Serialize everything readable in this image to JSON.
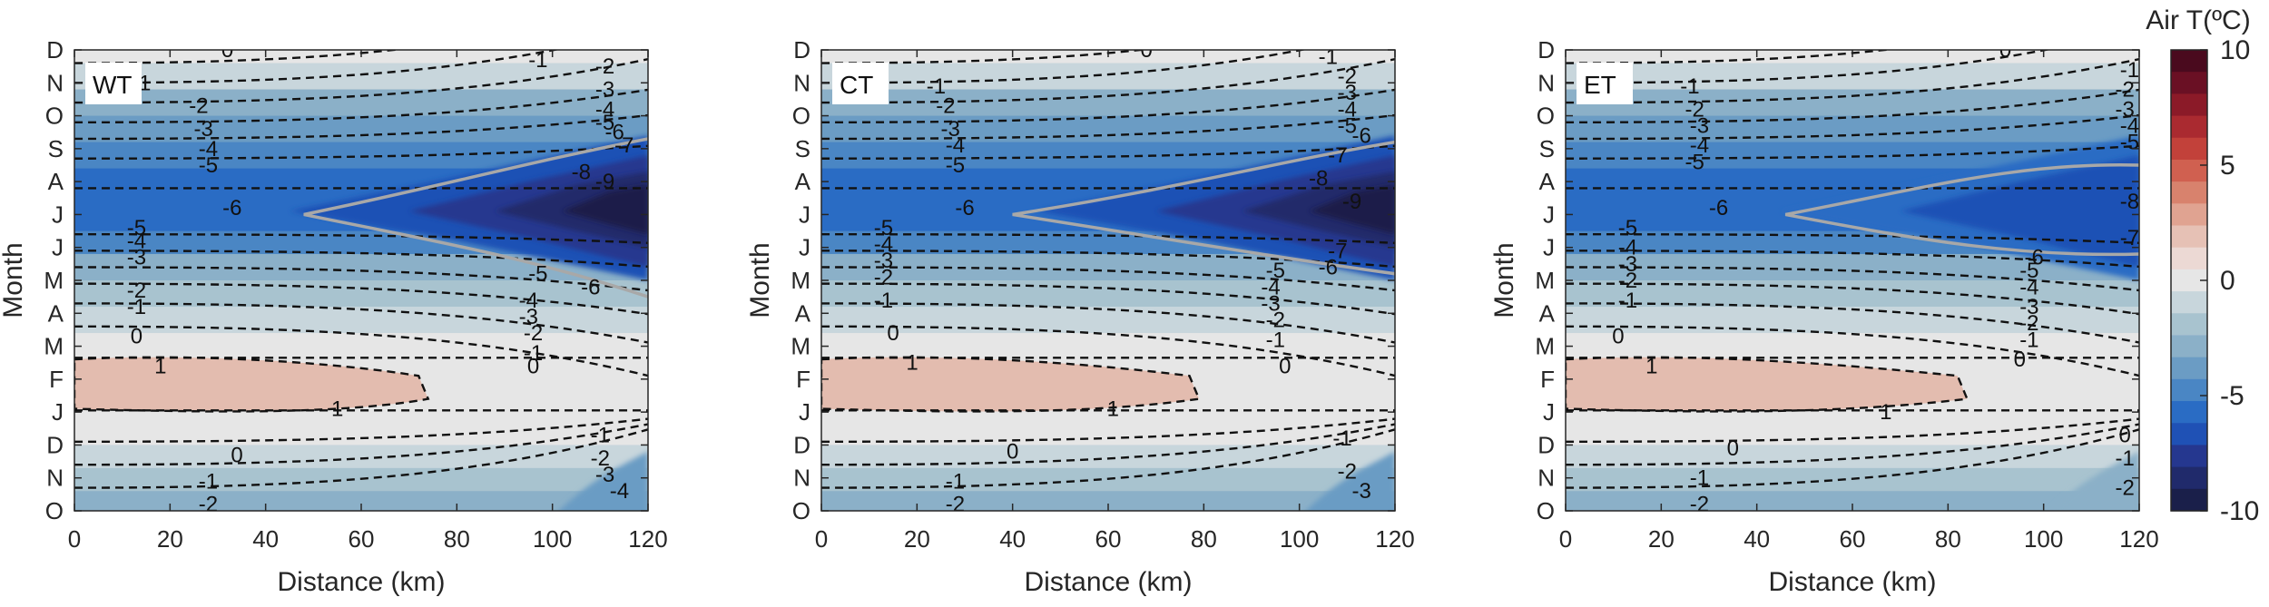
{
  "chart_data": {
    "type": "heatmap",
    "colorbar": {
      "title": "Air T(ºC)",
      "ticks": [
        "10",
        "5",
        "0",
        "-5",
        "-10"
      ],
      "range": [
        -10,
        10
      ],
      "colors": [
        "#1a1f4a",
        "#202a6b",
        "#25378f",
        "#1f51b5",
        "#2a6cc4",
        "#4a86c4",
        "#6b9cc4",
        "#8bb0c8",
        "#a8c3cf",
        "#c8d6dc",
        "#e6e6e6",
        "#ecd9d4",
        "#e6c1b5",
        "#e0a391",
        "#d8826d",
        "#d06050",
        "#c2413a",
        "#aa2a30",
        "#8b1a28",
        "#6a1024",
        "#4a0a1e"
      ]
    },
    "x": {
      "label": "Distance (km)",
      "range": [
        0,
        120
      ],
      "ticks": [
        "0",
        "20",
        "40",
        "60",
        "80",
        "100",
        "120"
      ]
    },
    "y": {
      "label": "Month",
      "ticks_top_to_bottom": [
        "D",
        "N",
        "O",
        "S",
        "A",
        "J",
        "J",
        "M",
        "A",
        "M",
        "F",
        "J",
        "D",
        "N",
        "O"
      ]
    },
    "panels": [
      {
        "name": "WT",
        "labels": [
          {
            "t": "0",
            "km": 32,
            "m": 0
          },
          {
            "t": "-1",
            "km": 14,
            "m": 1
          },
          {
            "t": "-1",
            "km": 97,
            "m": 0.3
          },
          {
            "t": "-2",
            "km": 111,
            "m": 0.5
          },
          {
            "t": "-3",
            "km": 111,
            "m": 1.2
          },
          {
            "t": "-4",
            "km": 111,
            "m": 1.8
          },
          {
            "t": "-5",
            "km": 111,
            "m": 2.2
          },
          {
            "t": "-6",
            "km": 113,
            "m": 2.5
          },
          {
            "t": "-7",
            "km": 115,
            "m": 2.9
          },
          {
            "t": "-2",
            "km": 26,
            "m": 1.7
          },
          {
            "t": "-3",
            "km": 27,
            "m": 2.4
          },
          {
            "t": "-4",
            "km": 28,
            "m": 3
          },
          {
            "t": "-5",
            "km": 28,
            "m": 3.5
          },
          {
            "t": "-6",
            "km": 33,
            "m": 4.8
          },
          {
            "t": "-8",
            "km": 106,
            "m": 3.7
          },
          {
            "t": "-9",
            "km": 111,
            "m": 4.0
          },
          {
            "t": "-5",
            "km": 13,
            "m": 5.4
          },
          {
            "t": "-4",
            "km": 13,
            "m": 5.8
          },
          {
            "t": "-3",
            "km": 13,
            "m": 6.3
          },
          {
            "t": "-2",
            "km": 13,
            "m": 7.3
          },
          {
            "t": "-1",
            "km": 13,
            "m": 7.8
          },
          {
            "t": "0",
            "km": 13,
            "m": 8.7
          },
          {
            "t": "-5",
            "km": 97,
            "m": 6.8
          },
          {
            "t": "-6",
            "km": 108,
            "m": 7.2
          },
          {
            "t": "-4",
            "km": 95,
            "m": 7.6
          },
          {
            "t": "-3",
            "km": 95,
            "m": 8.1
          },
          {
            "t": "-2",
            "km": 96,
            "m": 8.6
          },
          {
            "t": "-1",
            "km": 96,
            "m": 9.2
          },
          {
            "t": "0",
            "km": 96,
            "m": 9.6
          },
          {
            "t": "1",
            "km": 18,
            "m": 9.6
          },
          {
            "t": "1",
            "km": 55,
            "m": 10.9
          },
          {
            "t": "0",
            "km": 34,
            "m": 12.3
          },
          {
            "t": "-1",
            "km": 110,
            "m": 11.7
          },
          {
            "t": "-2",
            "km": 110,
            "m": 12.4
          },
          {
            "t": "-3",
            "km": 111,
            "m": 12.9
          },
          {
            "t": "-4",
            "km": 114,
            "m": 13.4
          },
          {
            "t": "-1",
            "km": 28,
            "m": 13.1
          },
          {
            "t": "-2",
            "km": 28,
            "m": 13.8
          }
        ]
      },
      {
        "name": "CT",
        "labels": [
          {
            "t": "0",
            "km": 68,
            "m": 0
          },
          {
            "t": "-1",
            "km": 106,
            "m": 0.2
          },
          {
            "t": "-1",
            "km": 24,
            "m": 1.1
          },
          {
            "t": "-2",
            "km": 110,
            "m": 0.8
          },
          {
            "t": "-3",
            "km": 110,
            "m": 1.3
          },
          {
            "t": "-4",
            "km": 110,
            "m": 1.8
          },
          {
            "t": "-5",
            "km": 110,
            "m": 2.3
          },
          {
            "t": "-6",
            "km": 113,
            "m": 2.6
          },
          {
            "t": "-2",
            "km": 26,
            "m": 1.7
          },
          {
            "t": "-3",
            "km": 27,
            "m": 2.4
          },
          {
            "t": "-4",
            "km": 28,
            "m": 2.9
          },
          {
            "t": "-5",
            "km": 28,
            "m": 3.5
          },
          {
            "t": "-7",
            "km": 108,
            "m": 3.2
          },
          {
            "t": "-8",
            "km": 104,
            "m": 3.9
          },
          {
            "t": "-6",
            "km": 30,
            "m": 4.8
          },
          {
            "t": "-9",
            "km": 111,
            "m": 4.6
          },
          {
            "t": "-5",
            "km": 13,
            "m": 5.4
          },
          {
            "t": "-4",
            "km": 13,
            "m": 5.9
          },
          {
            "t": "-3",
            "km": 13,
            "m": 6.4
          },
          {
            "t": "-2",
            "km": 13,
            "m": 6.9
          },
          {
            "t": "-1",
            "km": 13,
            "m": 7.6
          },
          {
            "t": "0",
            "km": 15,
            "m": 8.6
          },
          {
            "t": "-7",
            "km": 108,
            "m": 6.1
          },
          {
            "t": "-6",
            "km": 106,
            "m": 6.6
          },
          {
            "t": "-5",
            "km": 95,
            "m": 6.7
          },
          {
            "t": "-4",
            "km": 94,
            "m": 7.2
          },
          {
            "t": "-3",
            "km": 94,
            "m": 7.7
          },
          {
            "t": "-2",
            "km": 95,
            "m": 8.2
          },
          {
            "t": "-1",
            "km": 95,
            "m": 8.8
          },
          {
            "t": "0",
            "km": 97,
            "m": 9.6
          },
          {
            "t": "1",
            "km": 19,
            "m": 9.5
          },
          {
            "t": "1",
            "km": 61,
            "m": 10.9
          },
          {
            "t": "0",
            "km": 40,
            "m": 12.2
          },
          {
            "t": "-1",
            "km": 109,
            "m": 11.8
          },
          {
            "t": "-2",
            "km": 110,
            "m": 12.8
          },
          {
            "t": "-3",
            "km": 113,
            "m": 13.4
          },
          {
            "t": "-1",
            "km": 28,
            "m": 13.1
          },
          {
            "t": "-2",
            "km": 28,
            "m": 13.8
          }
        ]
      },
      {
        "name": "ET",
        "labels": [
          {
            "t": "0",
            "km": 92,
            "m": 0
          },
          {
            "t": "-1",
            "km": 118,
            "m": 0.6
          },
          {
            "t": "-1",
            "km": 26,
            "m": 1.1
          },
          {
            "t": "-2",
            "km": 117,
            "m": 1.2
          },
          {
            "t": "-3",
            "km": 117,
            "m": 1.8
          },
          {
            "t": "-4",
            "km": 118,
            "m": 2.3
          },
          {
            "t": "-5",
            "km": 118,
            "m": 2.8
          },
          {
            "t": "-2",
            "km": 27,
            "m": 1.8
          },
          {
            "t": "-3",
            "km": 28,
            "m": 2.3
          },
          {
            "t": "-4",
            "km": 28,
            "m": 2.9
          },
          {
            "t": "-5",
            "km": 27,
            "m": 3.4
          },
          {
            "t": "-6",
            "km": 32,
            "m": 4.8
          },
          {
            "t": "-8",
            "km": 118,
            "m": 4.6
          },
          {
            "t": "-7",
            "km": 118,
            "m": 5.7
          },
          {
            "t": "-5",
            "km": 13,
            "m": 5.4
          },
          {
            "t": "-4",
            "km": 13,
            "m": 6.0
          },
          {
            "t": "-3",
            "km": 13,
            "m": 6.5
          },
          {
            "t": "-2",
            "km": 13,
            "m": 7.0
          },
          {
            "t": "-1",
            "km": 13,
            "m": 7.6
          },
          {
            "t": "0",
            "km": 11,
            "m": 8.7
          },
          {
            "t": "-6",
            "km": 98,
            "m": 6.3
          },
          {
            "t": "-5",
            "km": 97,
            "m": 6.7
          },
          {
            "t": "-4",
            "km": 97,
            "m": 7.2
          },
          {
            "t": "-3",
            "km": 97,
            "m": 7.8
          },
          {
            "t": "-2",
            "km": 97,
            "m": 8.3
          },
          {
            "t": "-1",
            "km": 97,
            "m": 8.8
          },
          {
            "t": "0",
            "km": 95,
            "m": 9.4
          },
          {
            "t": "1",
            "km": 18,
            "m": 9.6
          },
          {
            "t": "1",
            "km": 67,
            "m": 11.0
          },
          {
            "t": "0",
            "km": 35,
            "m": 12.1
          },
          {
            "t": "0",
            "km": 117,
            "m": 11.7
          },
          {
            "t": "-1",
            "km": 117,
            "m": 12.4
          },
          {
            "t": "-2",
            "km": 117,
            "m": 13.3
          },
          {
            "t": "-1",
            "km": 28,
            "m": 13.0
          },
          {
            "t": "-2",
            "km": 28,
            "m": 13.8
          }
        ]
      }
    ]
  }
}
